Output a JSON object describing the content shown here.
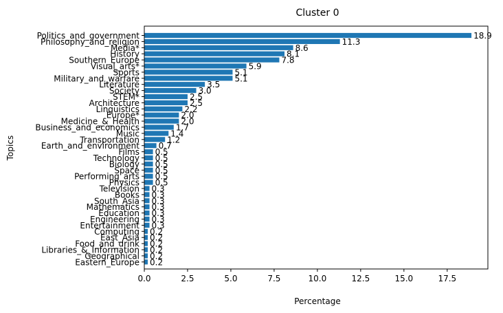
{
  "chart_data": {
    "type": "bar",
    "orientation": "horizontal",
    "title": "Cluster 0",
    "xlabel": "Percentage",
    "ylabel": "Topics",
    "xlim": [
      0,
      19.85
    ],
    "xticks": [
      "0.0",
      "2.5",
      "5.0",
      "7.5",
      "10.0",
      "12.5",
      "15.0",
      "17.5"
    ],
    "grid": false,
    "bar_color": "#1f77b4",
    "categories": [
      "Politics_and_government",
      "Philosophy_and_religion",
      "Media*",
      "History",
      "Southern_Europe",
      "Visual_arts*",
      "Sports",
      "Military_and_warfare",
      "Literature",
      "Society",
      "STEM*",
      "Architecture",
      "Linguistics",
      "Europe*",
      "Medicine_&_Health",
      "Business_and_economics",
      "Music",
      "Transportation",
      "Earth_and_environment",
      "Films",
      "Technology",
      "Biology",
      "Space",
      "Performing_arts",
      "Physics",
      "Television",
      "Books",
      "South_Asia",
      "Mathematics",
      "Education",
      "Engineering",
      "Entertainment",
      "Computing",
      "East_Asia",
      "Food_and_drink",
      "Libraries_&_Information",
      "Geographical",
      "Eastern_Europe"
    ],
    "values": [
      18.9,
      11.3,
      8.6,
      8.1,
      7.8,
      5.9,
      5.1,
      5.1,
      3.5,
      3.0,
      2.5,
      2.5,
      2.2,
      2.0,
      2.0,
      1.7,
      1.4,
      1.2,
      0.7,
      0.5,
      0.5,
      0.5,
      0.5,
      0.5,
      0.5,
      0.3,
      0.3,
      0.3,
      0.3,
      0.3,
      0.3,
      0.3,
      0.2,
      0.2,
      0.2,
      0.2,
      0.2,
      0.2
    ],
    "labels": [
      "18.9",
      "11.3",
      "8.6",
      "8.1",
      "7.8",
      "5.9",
      "5.1",
      "5.1",
      "3.5",
      "3.0",
      "2.5",
      "2.5",
      "2.2",
      "2.0",
      "2.0",
      "1.7",
      "1.4",
      "1.2",
      "0.7",
      "0.5",
      "0.5",
      "0.5",
      "0.5",
      "0.5",
      "0.5",
      "0.3",
      "0.3",
      "0.3",
      "0.3",
      "0.3",
      "0.3",
      "0.3",
      "0.2",
      "0.2",
      "0.2",
      "0.2",
      "0.2",
      "0.2"
    ]
  }
}
